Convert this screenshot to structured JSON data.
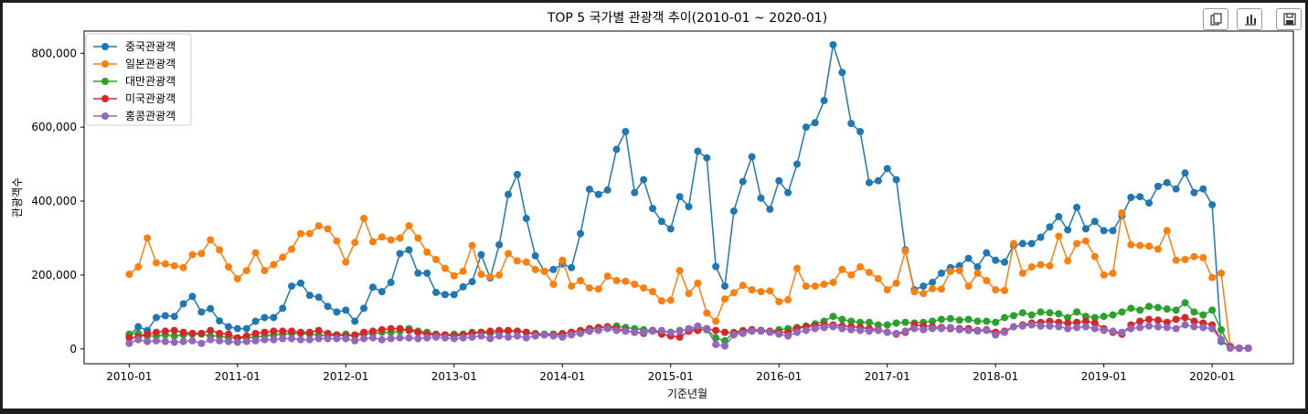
{
  "toolbar": {
    "icons": [
      "copy-icon",
      "chart-icon",
      "save-icon"
    ]
  },
  "chart_data": {
    "type": "line",
    "title": "TOP 5 국가별 관광객 추이(2010-01 ~ 2020-01)",
    "xlabel": "기준년월",
    "ylabel": "관광객수",
    "x_start": "2010-01",
    "x_end": "2020-05",
    "x_ticks": [
      "2010-01",
      "2011-01",
      "2012-01",
      "2013-01",
      "2014-01",
      "2015-01",
      "2016-01",
      "2017-01",
      "2018-01",
      "2019-01",
      "2020-01"
    ],
    "y_ticks": [
      "0",
      "200,000",
      "400,000",
      "600,000",
      "800,000"
    ],
    "ylim": [
      -40000,
      860000
    ],
    "legend_position": "top-left",
    "grid": false,
    "series": [
      {
        "name": "중국관광객",
        "color": "#1f77b4",
        "values": [
          36000,
          60000,
          50000,
          85000,
          90000,
          88000,
          122000,
          142000,
          100000,
          109000,
          76000,
          60000,
          55000,
          55000,
          75000,
          85000,
          85000,
          110000,
          170000,
          178000,
          145000,
          140000,
          115000,
          100000,
          105000,
          75000,
          110000,
          167000,
          155000,
          180000,
          258000,
          268000,
          205000,
          205000,
          153000,
          147000,
          147000,
          168000,
          182000,
          255000,
          192000,
          282000,
          418000,
          472000,
          353000,
          252000,
          210000,
          215000,
          230000,
          220000,
          312000,
          432000,
          418000,
          430000,
          540000,
          588000,
          423000,
          458000,
          380000,
          345000,
          325000,
          412000,
          385000,
          535000,
          517000,
          223000,
          170000,
          373000,
          453000,
          520000,
          408000,
          378000,
          455000,
          423000,
          500000,
          600000,
          612000,
          672000,
          823000,
          748000,
          610000,
          588000,
          450000,
          455000,
          488000,
          458000,
          268000,
          160000,
          170000,
          180000,
          205000,
          220000,
          225000,
          245000,
          222000,
          260000,
          240000,
          235000,
          280000,
          285000,
          285000,
          302000,
          330000,
          358000,
          322000,
          383000,
          325000,
          345000,
          320000,
          320000,
          360000,
          410000,
          412000,
          395000,
          440000,
          450000,
          433000,
          476000,
          423000,
          433000,
          390000,
          20000,
          5000,
          2000,
          2000
        ]
      },
      {
        "name": "일본관광객",
        "color": "#ff7f0e",
        "values": [
          202000,
          222000,
          300000,
          233000,
          230000,
          225000,
          220000,
          255000,
          258000,
          295000,
          268000,
          222000,
          190000,
          212000,
          260000,
          212000,
          228000,
          248000,
          270000,
          312000,
          312000,
          333000,
          325000,
          292000,
          235000,
          288000,
          353000,
          290000,
          303000,
          295000,
          300000,
          333000,
          300000,
          262000,
          242000,
          218000,
          198000,
          210000,
          280000,
          202000,
          195000,
          200000,
          258000,
          238000,
          235000,
          215000,
          210000,
          175000,
          240000,
          170000,
          185000,
          165000,
          162000,
          197000,
          185000,
          183000,
          175000,
          165000,
          155000,
          130000,
          132000,
          212000,
          150000,
          178000,
          97000,
          75000,
          135000,
          152000,
          172000,
          160000,
          155000,
          157000,
          128000,
          133000,
          218000,
          170000,
          170000,
          175000,
          180000,
          215000,
          200000,
          222000,
          207000,
          190000,
          160000,
          178000,
          265000,
          155000,
          150000,
          163000,
          162000,
          210000,
          212000,
          170000,
          205000,
          185000,
          160000,
          158000,
          285000,
          205000,
          222000,
          228000,
          225000,
          305000,
          238000,
          285000,
          292000,
          250000,
          200000,
          205000,
          368000,
          282000,
          280000,
          278000,
          270000,
          320000,
          240000,
          242000,
          250000,
          247000,
          193000,
          205000,
          8000,
          2000,
          2000
        ]
      },
      {
        "name": "대만관광객",
        "color": "#2ca02c",
        "values": [
          40000,
          42000,
          35000,
          35000,
          38000,
          35000,
          38000,
          40000,
          40000,
          35000,
          35000,
          30000,
          30000,
          30000,
          32000,
          35000,
          38000,
          40000,
          42000,
          42000,
          40000,
          38000,
          35000,
          38000,
          40000,
          35000,
          40000,
          42000,
          45000,
          45000,
          48000,
          55000,
          48000,
          45000,
          40000,
          38000,
          40000,
          40000,
          45000,
          45000,
          42000,
          45000,
          48000,
          48000,
          45000,
          42000,
          40000,
          40000,
          42000,
          45000,
          48000,
          52000,
          58000,
          60000,
          62000,
          58000,
          55000,
          52000,
          50000,
          48000,
          45000,
          50000,
          52000,
          55000,
          52000,
          30000,
          22000,
          45000,
          50000,
          52000,
          50000,
          48000,
          52000,
          55000,
          58000,
          62000,
          68000,
          75000,
          88000,
          80000,
          75000,
          72000,
          72000,
          65000,
          65000,
          70000,
          72000,
          70000,
          72000,
          75000,
          80000,
          82000,
          78000,
          80000,
          75000,
          75000,
          72000,
          85000,
          90000,
          98000,
          92000,
          100000,
          98000,
          95000,
          85000,
          100000,
          88000,
          85000,
          88000,
          92000,
          100000,
          110000,
          105000,
          115000,
          112000,
          108000,
          105000,
          125000,
          100000,
          92000,
          105000,
          52000,
          5000,
          2000,
          2000
        ]
      },
      {
        "name": "미국관광객",
        "color": "#d62728",
        "values": [
          30000,
          32000,
          40000,
          45000,
          48000,
          50000,
          45000,
          42000,
          42000,
          50000,
          42000,
          40000,
          30000,
          35000,
          42000,
          45000,
          48000,
          48000,
          48000,
          45000,
          45000,
          50000,
          42000,
          38000,
          35000,
          38000,
          45000,
          48000,
          52000,
          55000,
          55000,
          50000,
          45000,
          40000,
          38000,
          38000,
          35000,
          38000,
          42000,
          45000,
          48000,
          50000,
          50000,
          48000,
          45000,
          40000,
          38000,
          38000,
          40000,
          45000,
          50000,
          55000,
          58000,
          60000,
          55000,
          50000,
          45000,
          42000,
          50000,
          40000,
          35000,
          32000,
          48000,
          50000,
          55000,
          50000,
          45000,
          42000,
          48000,
          52000,
          50000,
          48000,
          45000,
          45000,
          55000,
          60000,
          62000,
          65000,
          65000,
          62000,
          60000,
          58000,
          55000,
          52000,
          45000,
          40000,
          45000,
          65000,
          62000,
          60000,
          58000,
          55000,
          55000,
          55000,
          50000,
          52000,
          45000,
          48000,
          60000,
          65000,
          70000,
          72000,
          75000,
          72000,
          70000,
          72000,
          75000,
          70000,
          55000,
          45000,
          40000,
          65000,
          75000,
          80000,
          78000,
          72000,
          80000,
          85000,
          75000,
          70000,
          65000,
          25000,
          5000,
          2000,
          2000
        ]
      },
      {
        "name": "홍콩관광객",
        "color": "#9467bd",
        "values": [
          15000,
          25000,
          20000,
          22000,
          20000,
          18000,
          20000,
          22000,
          15000,
          25000,
          22000,
          20000,
          18000,
          20000,
          22000,
          25000,
          25000,
          28000,
          28000,
          25000,
          25000,
          28000,
          28000,
          28000,
          28000,
          22000,
          28000,
          30000,
          25000,
          28000,
          30000,
          30000,
          28000,
          30000,
          32000,
          30000,
          28000,
          30000,
          32000,
          35000,
          28000,
          35000,
          32000,
          35000,
          30000,
          35000,
          38000,
          35000,
          32000,
          38000,
          42000,
          48000,
          50000,
          55000,
          50000,
          48000,
          45000,
          45000,
          48000,
          50000,
          45000,
          48000,
          55000,
          62000,
          55000,
          12000,
          8000,
          38000,
          42000,
          48000,
          48000,
          45000,
          40000,
          35000,
          45000,
          50000,
          55000,
          58000,
          60000,
          55000,
          52000,
          50000,
          48000,
          50000,
          45000,
          42000,
          48000,
          55000,
          52000,
          55000,
          55000,
          58000,
          52000,
          50000,
          48000,
          50000,
          38000,
          45000,
          60000,
          62000,
          65000,
          62000,
          62000,
          60000,
          55000,
          58000,
          60000,
          55000,
          50000,
          48000,
          45000,
          55000,
          58000,
          62000,
          60000,
          58000,
          55000,
          65000,
          60000,
          58000,
          55000,
          25000,
          2000,
          2000,
          2000
        ]
      }
    ]
  }
}
